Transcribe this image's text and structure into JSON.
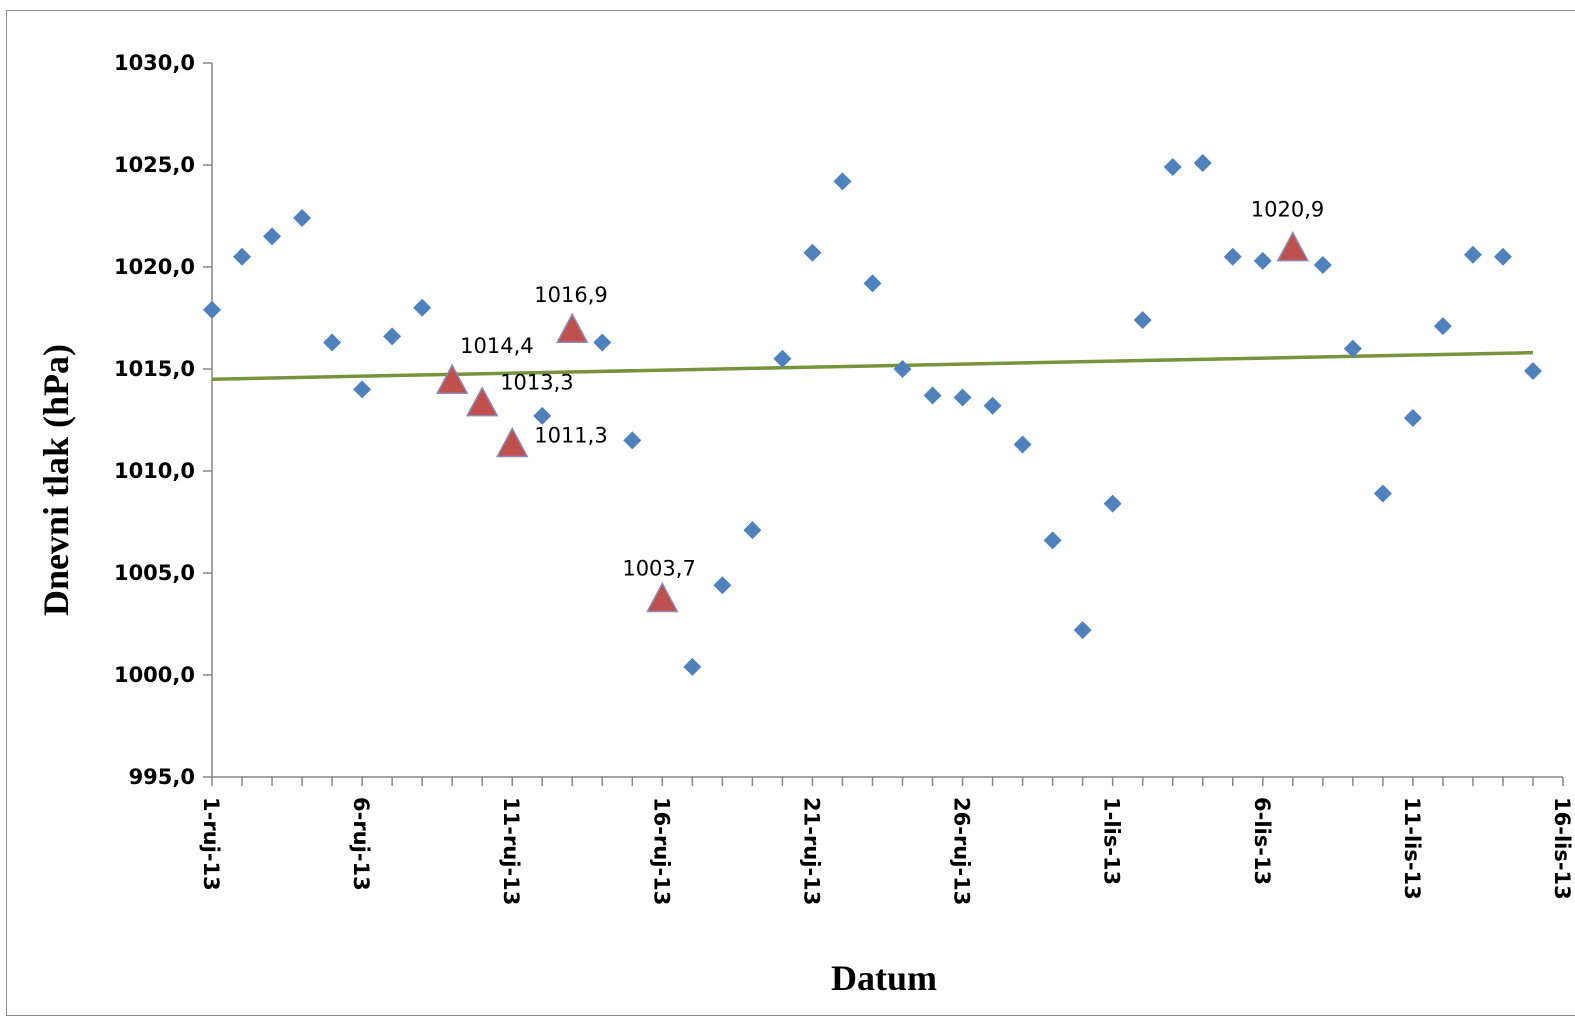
{
  "chart_data": {
    "type": "scatter",
    "title": "",
    "xlabel": "Datum",
    "ylabel": "Dnevni tlak (hPa)",
    "ylim": [
      995,
      1030
    ],
    "xlim": [
      "2013-09-01",
      "2013-10-16"
    ],
    "grid": false,
    "x_tick_labels": [
      "1-ruj-13",
      "6-ruj-13",
      "11-ruj-13",
      "16-ruj-13",
      "21-ruj-13",
      "26-ruj-13",
      "1-lis-13",
      "6-lis-13",
      "11-lis-13",
      "16-lis-13"
    ],
    "y_tick_labels": [
      "995,0",
      "1000,0",
      "1005,0",
      "1010,0",
      "1015,0",
      "1020,0",
      "1025,0",
      "1030,0"
    ],
    "y_ticks": [
      995,
      1000,
      1005,
      1010,
      1015,
      1020,
      1025,
      1030
    ],
    "colors": {
      "daily_marker": "#4f81bd",
      "highlight_marker": "#c0504d",
      "highlight_outline": "#8b8bb8",
      "trendline": "#77933c",
      "axis": "#868686"
    },
    "series": [
      {
        "marker": "diamond",
        "points": [
          [
            "2013-09-01",
            1017.9
          ],
          [
            "2013-09-02",
            1020.5
          ],
          [
            "2013-09-03",
            1021.5
          ],
          [
            "2013-09-04",
            1022.4
          ],
          [
            "2013-09-05",
            1016.3
          ],
          [
            "2013-09-06",
            1014.0
          ],
          [
            "2013-09-07",
            1016.6
          ],
          [
            "2013-09-08",
            1018.0
          ],
          [
            "2013-09-12",
            1012.7
          ],
          [
            "2013-09-14",
            1016.3
          ],
          [
            "2013-09-15",
            1011.5
          ],
          [
            "2013-09-17",
            1000.4
          ],
          [
            "2013-09-18",
            1004.4
          ],
          [
            "2013-09-19",
            1007.1
          ],
          [
            "2013-09-20",
            1015.5
          ],
          [
            "2013-09-21",
            1020.7
          ],
          [
            "2013-09-22",
            1024.2
          ],
          [
            "2013-09-23",
            1019.2
          ],
          [
            "2013-09-24",
            1015.0
          ],
          [
            "2013-09-25",
            1013.7
          ],
          [
            "2013-09-26",
            1013.6
          ],
          [
            "2013-09-27",
            1013.2
          ],
          [
            "2013-09-28",
            1011.3
          ],
          [
            "2013-09-29",
            1006.6
          ],
          [
            "2013-09-30",
            1002.2
          ],
          [
            "2013-10-01",
            1008.4
          ],
          [
            "2013-10-02",
            1017.4
          ],
          [
            "2013-10-03",
            1024.9
          ],
          [
            "2013-10-04",
            1025.1
          ],
          [
            "2013-10-05",
            1020.5
          ],
          [
            "2013-10-06",
            1020.3
          ],
          [
            "2013-10-08",
            1020.1
          ],
          [
            "2013-10-09",
            1016.0
          ],
          [
            "2013-10-10",
            1008.9
          ],
          [
            "2013-10-11",
            1012.6
          ],
          [
            "2013-10-12",
            1017.1
          ],
          [
            "2013-10-13",
            1020.6
          ],
          [
            "2013-10-14",
            1020.5
          ],
          [
            "2013-10-15",
            1014.9
          ]
        ]
      },
      {
        "marker": "triangle",
        "points": [
          [
            "2013-09-09",
            1014.4
          ],
          [
            "2013-09-10",
            1013.3
          ],
          [
            "2013-09-11",
            1011.3
          ],
          [
            "2013-09-13",
            1016.9
          ],
          [
            "2013-09-16",
            1003.7
          ],
          [
            "2013-10-07",
            1020.9
          ]
        ],
        "labels": [
          "1014,4",
          "1013,3",
          "1011,3",
          "1016,9",
          "1003,7",
          "1020,9"
        ]
      }
    ],
    "trendline": {
      "type": "linear",
      "points": [
        [
          "2013-09-01",
          1014.5
        ],
        [
          "2013-10-15",
          1015.8
        ]
      ]
    }
  }
}
